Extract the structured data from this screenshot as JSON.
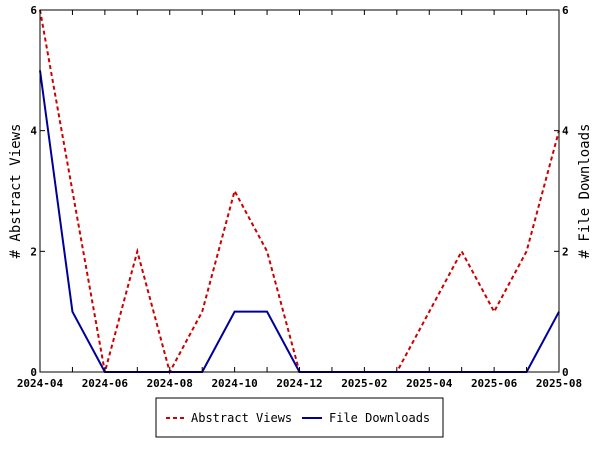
{
  "chart_data": {
    "type": "line",
    "x": [
      "2024-04",
      "2024-05",
      "2024-06",
      "2024-07",
      "2024-08",
      "2024-09",
      "2024-10",
      "2024-11",
      "2024-12",
      "2025-01",
      "2025-02",
      "2025-03",
      "2025-04",
      "2025-05",
      "2025-06",
      "2025-07",
      "2025-08"
    ],
    "x_tick_labels": [
      "2024-04",
      "2024-06",
      "2024-08",
      "2024-10",
      "2024-12",
      "2025-02",
      "2025-04",
      "2025-06",
      "2025-08"
    ],
    "ylabel_left": "# Abstract Views",
    "ylabel_right": "# File Downloads",
    "ylim_left": [
      0,
      6
    ],
    "ylim_right": [
      0,
      6
    ],
    "y_ticks": [
      "0",
      "2",
      "4",
      "6"
    ],
    "grid": false,
    "legend_position": "bottom",
    "series": [
      {
        "name": "Abstract Views",
        "axis": "left",
        "color": "#cc0000",
        "style": "dashed",
        "values": [
          6,
          3,
          0,
          2,
          0,
          1,
          3,
          2,
          0,
          0,
          0,
          0,
          1,
          2,
          1,
          2,
          4
        ]
      },
      {
        "name": "File Downloads",
        "axis": "right",
        "color": "#000099",
        "style": "solid",
        "values": [
          5,
          1,
          0,
          0,
          0,
          0,
          1,
          1,
          0,
          0,
          0,
          0,
          0,
          0,
          0,
          0,
          1
        ]
      }
    ]
  }
}
